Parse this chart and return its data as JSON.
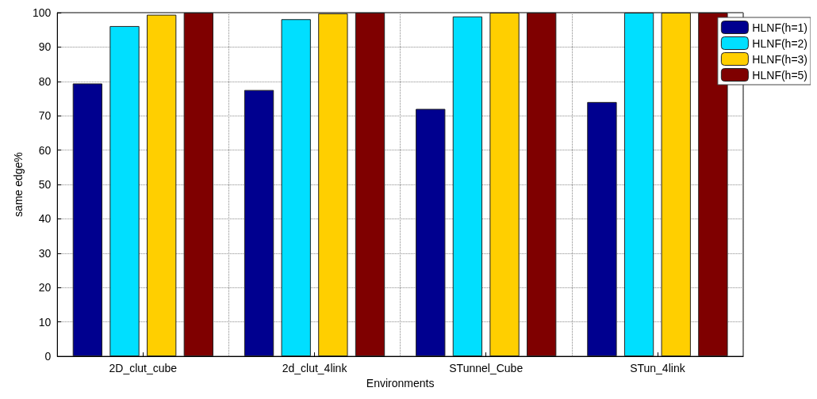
{
  "chart_data": {
    "type": "bar",
    "xlabel": "Environments",
    "ylabel": "same edge%",
    "categories": [
      "2D_clut_cube",
      "2d_clut_4link",
      "STunnel_Cube",
      "STun_4link"
    ],
    "series": [
      {
        "name": "HLNF(h=1)",
        "color": "#00008f",
        "values": [
          79.4,
          77.5,
          72,
          74
        ]
      },
      {
        "name": "HLNF(h=2)",
        "color": "#00dfff",
        "values": [
          96.1,
          98.1,
          98.9,
          100
        ]
      },
      {
        "name": "HLNF(h=3)",
        "color": "#ffcf00",
        "values": [
          99.4,
          99.8,
          100,
          100
        ]
      },
      {
        "name": "HLNF(h=5)",
        "color": "#7f0000",
        "values": [
          100,
          100,
          100,
          100
        ]
      }
    ],
    "ylim": [
      0,
      100
    ],
    "yticks": [
      0,
      10,
      20,
      30,
      40,
      50,
      60,
      70,
      80,
      90,
      100
    ],
    "grid": true,
    "legend": "top right"
  }
}
